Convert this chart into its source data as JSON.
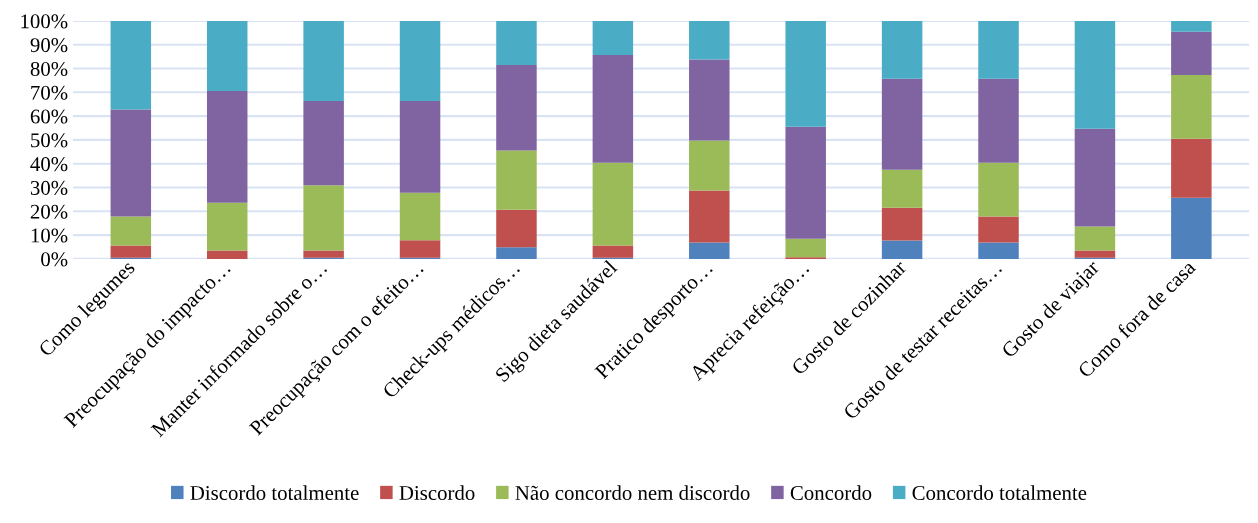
{
  "chart_data": {
    "type": "bar",
    "stacked": true,
    "categories": [
      "Como legumes",
      "Preocupação do impacto…",
      "Manter informado sobre o…",
      "Preocupação com o efeito…",
      "Check-ups médicos…",
      "Sigo dieta saudável",
      "Pratico desporto…",
      "Aprecia refeição…",
      "Gosto de cozinhar",
      "Gosto de testar receitas…",
      "Gosto de viajar",
      "Como fora de casa"
    ],
    "series": [
      {
        "name": "Discordo totalmente",
        "color": "#4f81bd",
        "values": [
          0.5,
          0,
          0.5,
          0.5,
          4.9,
          0.5,
          6.9,
          0,
          7.7,
          6.9,
          0.5,
          25.7
        ]
      },
      {
        "name": "Discordo",
        "color": "#c0504d",
        "values": [
          5.1,
          3.5,
          3.0,
          7.3,
          15.8,
          5.1,
          21.8,
          0.7,
          13.8,
          10.9,
          3.0,
          24.8
        ]
      },
      {
        "name": "Não concordo nem discordo",
        "color": "#9bbb59",
        "values": [
          12.2,
          20.1,
          27.4,
          20.0,
          24.8,
          34.8,
          21.0,
          7.8,
          16.0,
          22.6,
          10.1,
          26.8
        ]
      },
      {
        "name": "Concordo",
        "color": "#8064a2",
        "values": [
          45.0,
          47.0,
          35.5,
          38.6,
          36.0,
          45.3,
          34.1,
          47.0,
          38.2,
          35.3,
          41.1,
          18.2
        ]
      },
      {
        "name": "Concordo totalmente",
        "color": "#4bacc6",
        "values": [
          37.2,
          29.4,
          33.6,
          33.6,
          18.5,
          14.3,
          16.2,
          44.5,
          24.3,
          24.3,
          45.3,
          4.5
        ]
      }
    ],
    "ylim": [
      0,
      100
    ],
    "yticks": [
      {
        "value": 0,
        "label": "0%"
      },
      {
        "value": 10,
        "label": "10%"
      },
      {
        "value": 20,
        "label": "20%"
      },
      {
        "value": 30,
        "label": "30%"
      },
      {
        "value": 40,
        "label": "40%"
      },
      {
        "value": 50,
        "label": "50%"
      },
      {
        "value": 60,
        "label": "60%"
      },
      {
        "value": 70,
        "label": "70%"
      },
      {
        "value": 80,
        "label": "80%"
      },
      {
        "value": 90,
        "label": "90%"
      },
      {
        "value": 100,
        "label": "100%"
      }
    ],
    "grid": "y",
    "legend": "bottom"
  }
}
